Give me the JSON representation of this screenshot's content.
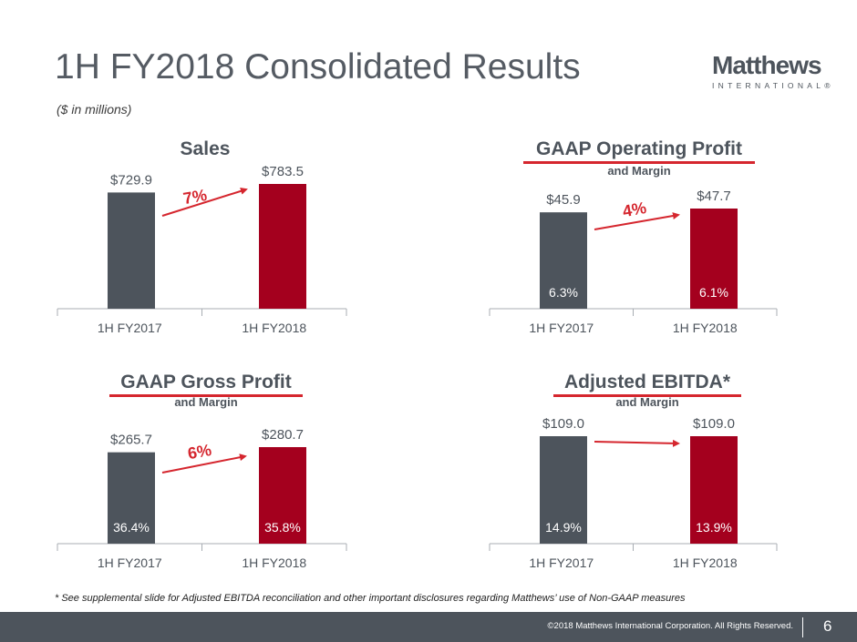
{
  "header": {
    "title": "1H FY2018 Consolidated Results",
    "subtitle": "($ in millions)"
  },
  "logo": {
    "name": "Matthews",
    "sub": "INTERNATIONAL®"
  },
  "colors": {
    "fy2017": "#4d545c",
    "fy2018": "#a4001e",
    "accent": "#d5262e"
  },
  "chart_data": [
    {
      "type": "bar",
      "title": "Sales",
      "subtitle": "",
      "categories": [
        "1H FY2017",
        "1H FY2018"
      ],
      "values": [
        729.9,
        783.5
      ],
      "value_labels": [
        "$729.9",
        "$783.5"
      ],
      "margin_labels": [
        "",
        ""
      ],
      "growth": "7%"
    },
    {
      "type": "bar",
      "title": "GAAP Operating Profit",
      "subtitle": "and Margin",
      "categories": [
        "1H FY2017",
        "1H FY2018"
      ],
      "values": [
        45.9,
        47.7
      ],
      "value_labels": [
        "$45.9",
        "$47.7"
      ],
      "margin_labels": [
        "6.3%",
        "6.1%"
      ],
      "growth": "4%"
    },
    {
      "type": "bar",
      "title": "GAAP Gross Profit",
      "subtitle": "and Margin",
      "categories": [
        "1H FY2017",
        "1H FY2018"
      ],
      "values": [
        265.7,
        280.7
      ],
      "value_labels": [
        "$265.7",
        "$280.7"
      ],
      "margin_labels": [
        "36.4%",
        "35.8%"
      ],
      "growth": "6%"
    },
    {
      "type": "bar",
      "title": "Adjusted EBITDA*",
      "subtitle": "and Margin",
      "categories": [
        "1H FY2017",
        "1H FY2018"
      ],
      "values": [
        109.0,
        109.0
      ],
      "value_labels": [
        "$109.0",
        "$109.0"
      ],
      "margin_labels": [
        "14.9%",
        "13.9%"
      ],
      "growth": ""
    }
  ],
  "footnote": "* See supplemental slide for Adjusted EBITDA reconciliation and other important disclosures regarding Matthews’ use of Non-GAAP measures",
  "footer": {
    "copyright": "©2018 Matthews International Corporation. All Rights Reserved.",
    "page": "6"
  }
}
